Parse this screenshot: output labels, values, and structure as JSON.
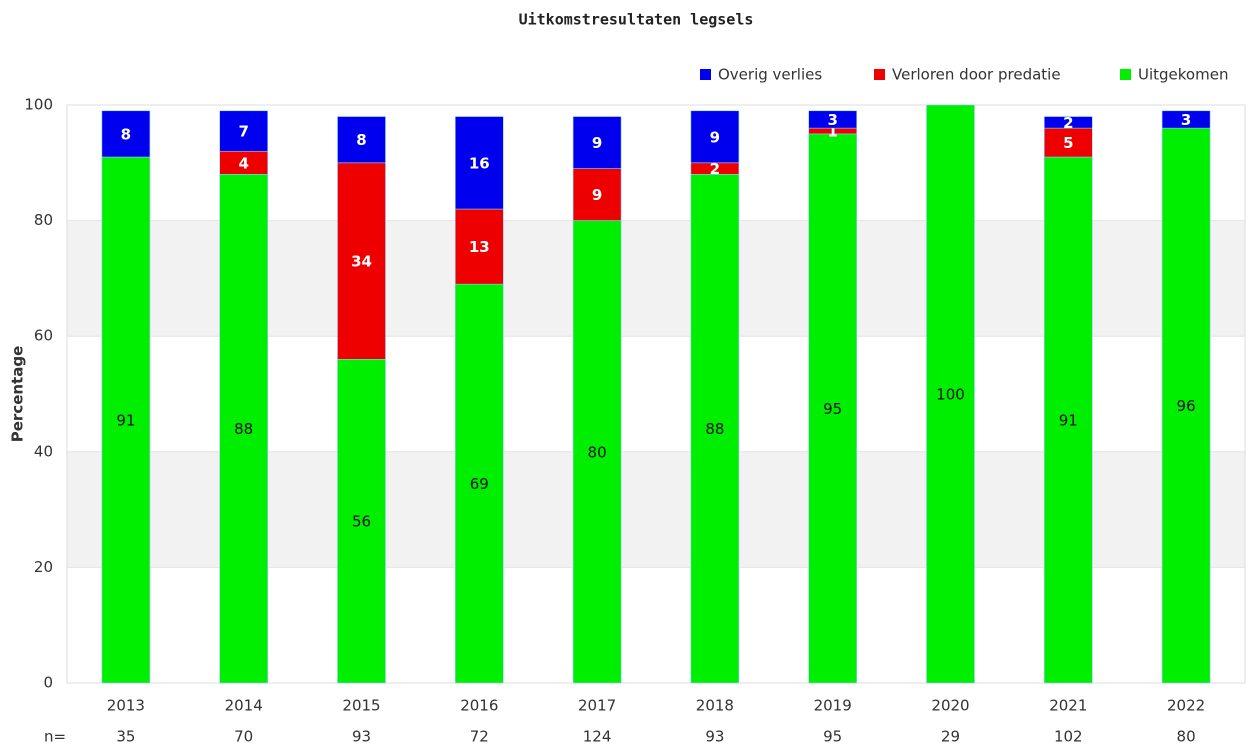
{
  "chart_data": {
    "type": "stacked_bar",
    "title": "Uitkomstresultaten legsels",
    "y_label": "Percentage",
    "categories": [
      "2013",
      "2014",
      "2015",
      "2016",
      "2017",
      "2018",
      "2019",
      "2020",
      "2021",
      "2022"
    ],
    "series": [
      {
        "name": "Uitgekomen",
        "color": "#00ee00",
        "values": [
          91,
          88,
          56,
          69,
          80,
          88,
          95,
          100,
          91,
          96
        ]
      },
      {
        "name": "Verloren door predatie",
        "color": "#ee0000",
        "values": [
          null,
          4,
          34,
          13,
          9,
          2,
          1,
          null,
          5,
          null
        ]
      },
      {
        "name": "Overig verlies",
        "color": "#0000ee",
        "values": [
          8,
          7,
          8,
          16,
          9,
          9,
          3,
          null,
          2,
          3
        ]
      }
    ],
    "n_label": "n=",
    "n_values": [
      35,
      70,
      93,
      72,
      124,
      93,
      95,
      29,
      102,
      80
    ],
    "ylim": [
      0,
      100
    ],
    "yticks": [
      0,
      20,
      40,
      60,
      80,
      100
    ],
    "grid": true,
    "legend": "top-right"
  }
}
